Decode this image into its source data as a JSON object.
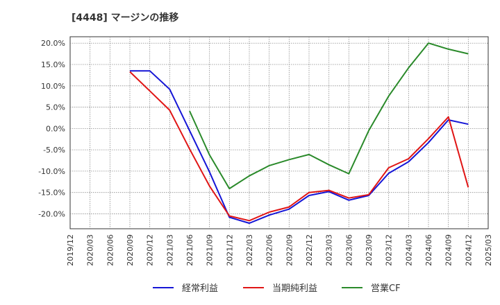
{
  "chart_data": {
    "type": "line",
    "title": "[4448]  マージンの推移",
    "xlabel": "",
    "ylabel": "",
    "ylim": [
      -0.235,
      0.215
    ],
    "y_ticks": [
      {
        "value": 0.2,
        "label": "20.0%"
      },
      {
        "value": 0.15,
        "label": "15.0%"
      },
      {
        "value": 0.1,
        "label": "10.0%"
      },
      {
        "value": 0.05,
        "label": "5.0%"
      },
      {
        "value": 0.0,
        "label": "0.0%"
      },
      {
        "value": -0.05,
        "label": "-5.0%"
      },
      {
        "value": -0.1,
        "label": "-10.0%"
      },
      {
        "value": -0.15,
        "label": "-15.0%"
      },
      {
        "value": -0.2,
        "label": "-20.0%"
      }
    ],
    "x_ticks": [
      "2019/12",
      "2020/03",
      "2020/06",
      "2020/09",
      "2020/12",
      "2021/03",
      "2021/06",
      "2021/09",
      "2021/12",
      "2022/03",
      "2022/06",
      "2022/09",
      "2022/12",
      "2023/03",
      "2023/06",
      "2023/09",
      "2023/12",
      "2024/03",
      "2024/06",
      "2024/09",
      "2024/12",
      "2025/03"
    ],
    "grid": true,
    "legend_position": "bottom",
    "series": [
      {
        "name": "経常利益",
        "color": "#1515d6",
        "x": [
          "2020/09",
          "2020/12",
          "2021/03",
          "2021/06",
          "2021/09",
          "2021/12",
          "2022/03",
          "2022/06",
          "2022/09",
          "2022/12",
          "2023/03",
          "2023/06",
          "2023/09",
          "2023/12",
          "2024/03",
          "2024/06",
          "2024/09",
          "2024/12"
        ],
        "values": [
          0.135,
          0.135,
          0.092,
          -0.005,
          -0.102,
          -0.208,
          -0.222,
          -0.203,
          -0.189,
          -0.157,
          -0.148,
          -0.168,
          -0.157,
          -0.105,
          -0.078,
          -0.033,
          0.02,
          0.01
        ]
      },
      {
        "name": "当期純利益",
        "color": "#e01515",
        "x": [
          "2020/09",
          "2020/12",
          "2021/03",
          "2021/06",
          "2021/09",
          "2021/12",
          "2022/03",
          "2022/06",
          "2022/09",
          "2022/12",
          "2023/03",
          "2023/06",
          "2023/09",
          "2023/12",
          "2024/03",
          "2024/06",
          "2024/09",
          "2024/12"
        ],
        "values": [
          0.133,
          0.088,
          0.043,
          -0.048,
          -0.135,
          -0.205,
          -0.216,
          -0.196,
          -0.184,
          -0.15,
          -0.145,
          -0.163,
          -0.155,
          -0.092,
          -0.071,
          -0.024,
          0.027,
          -0.138
        ]
      },
      {
        "name": "営業CF",
        "color": "#2a8a2a",
        "x": [
          "2021/06",
          "2021/09",
          "2021/12",
          "2022/03",
          "2022/06",
          "2022/09",
          "2022/12",
          "2023/03",
          "2023/06",
          "2023/09",
          "2023/12",
          "2024/03",
          "2024/06",
          "2024/09",
          "2024/12"
        ],
        "values": [
          0.041,
          -0.062,
          -0.141,
          -0.111,
          -0.087,
          -0.073,
          -0.061,
          -0.085,
          -0.106,
          -0.005,
          0.076,
          0.142,
          0.2,
          0.186,
          0.175
        ]
      }
    ]
  }
}
